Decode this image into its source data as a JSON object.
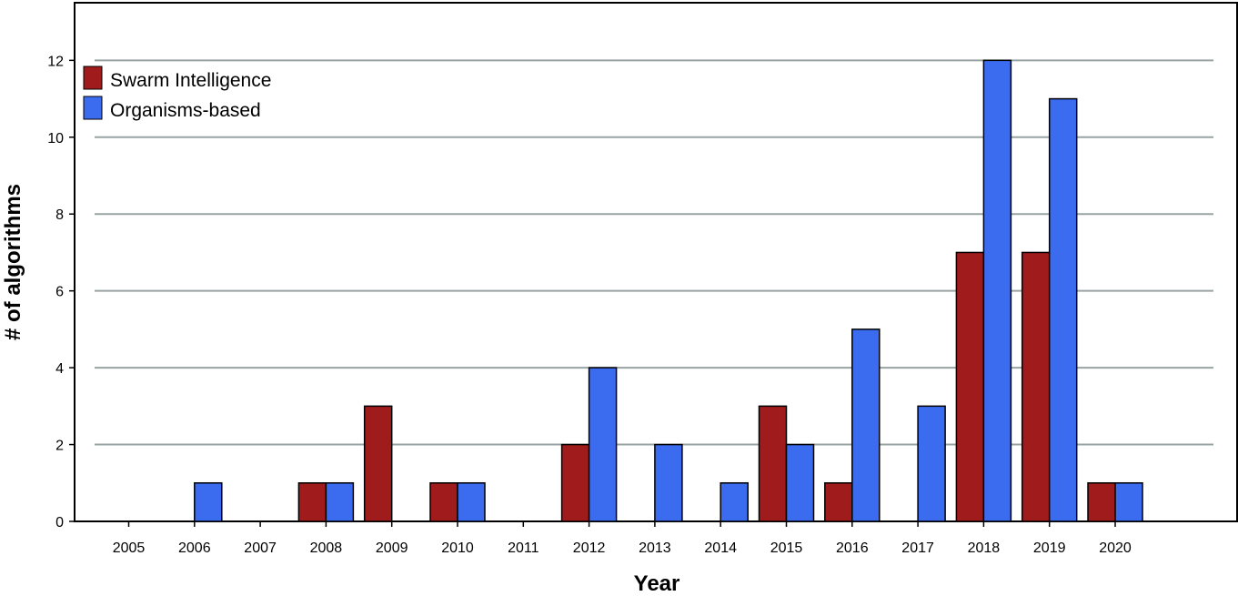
{
  "chart_data": {
    "type": "bar",
    "title": "",
    "xlabel": "Year",
    "ylabel": "# of algorithms",
    "categories": [
      "2005",
      "2006",
      "2007",
      "2008",
      "2009",
      "2010",
      "2011",
      "2012",
      "2013",
      "2014",
      "2015",
      "2016",
      "2017",
      "2018",
      "2019",
      "2020"
    ],
    "series": [
      {
        "name": "Swarm Intelligence",
        "color": "#a01b1b",
        "values": [
          0,
          0,
          0,
          1,
          3,
          1,
          0,
          2,
          0,
          0,
          3,
          1,
          0,
          7,
          7,
          1
        ]
      },
      {
        "name": "Organisms-based",
        "color": "#3b6cf0",
        "values": [
          0,
          1,
          0,
          1,
          0,
          1,
          0,
          4,
          2,
          1,
          2,
          5,
          3,
          12,
          11,
          1
        ]
      }
    ],
    "ylim": [
      0,
      13.5
    ],
    "yticks": [
      0,
      2,
      4,
      6,
      8,
      10,
      12
    ],
    "grid": true,
    "legend_position": "top-left",
    "colors": {
      "plot_background": "#ffffff",
      "gridline": "#9aa3a3",
      "frame": "#000000"
    }
  }
}
